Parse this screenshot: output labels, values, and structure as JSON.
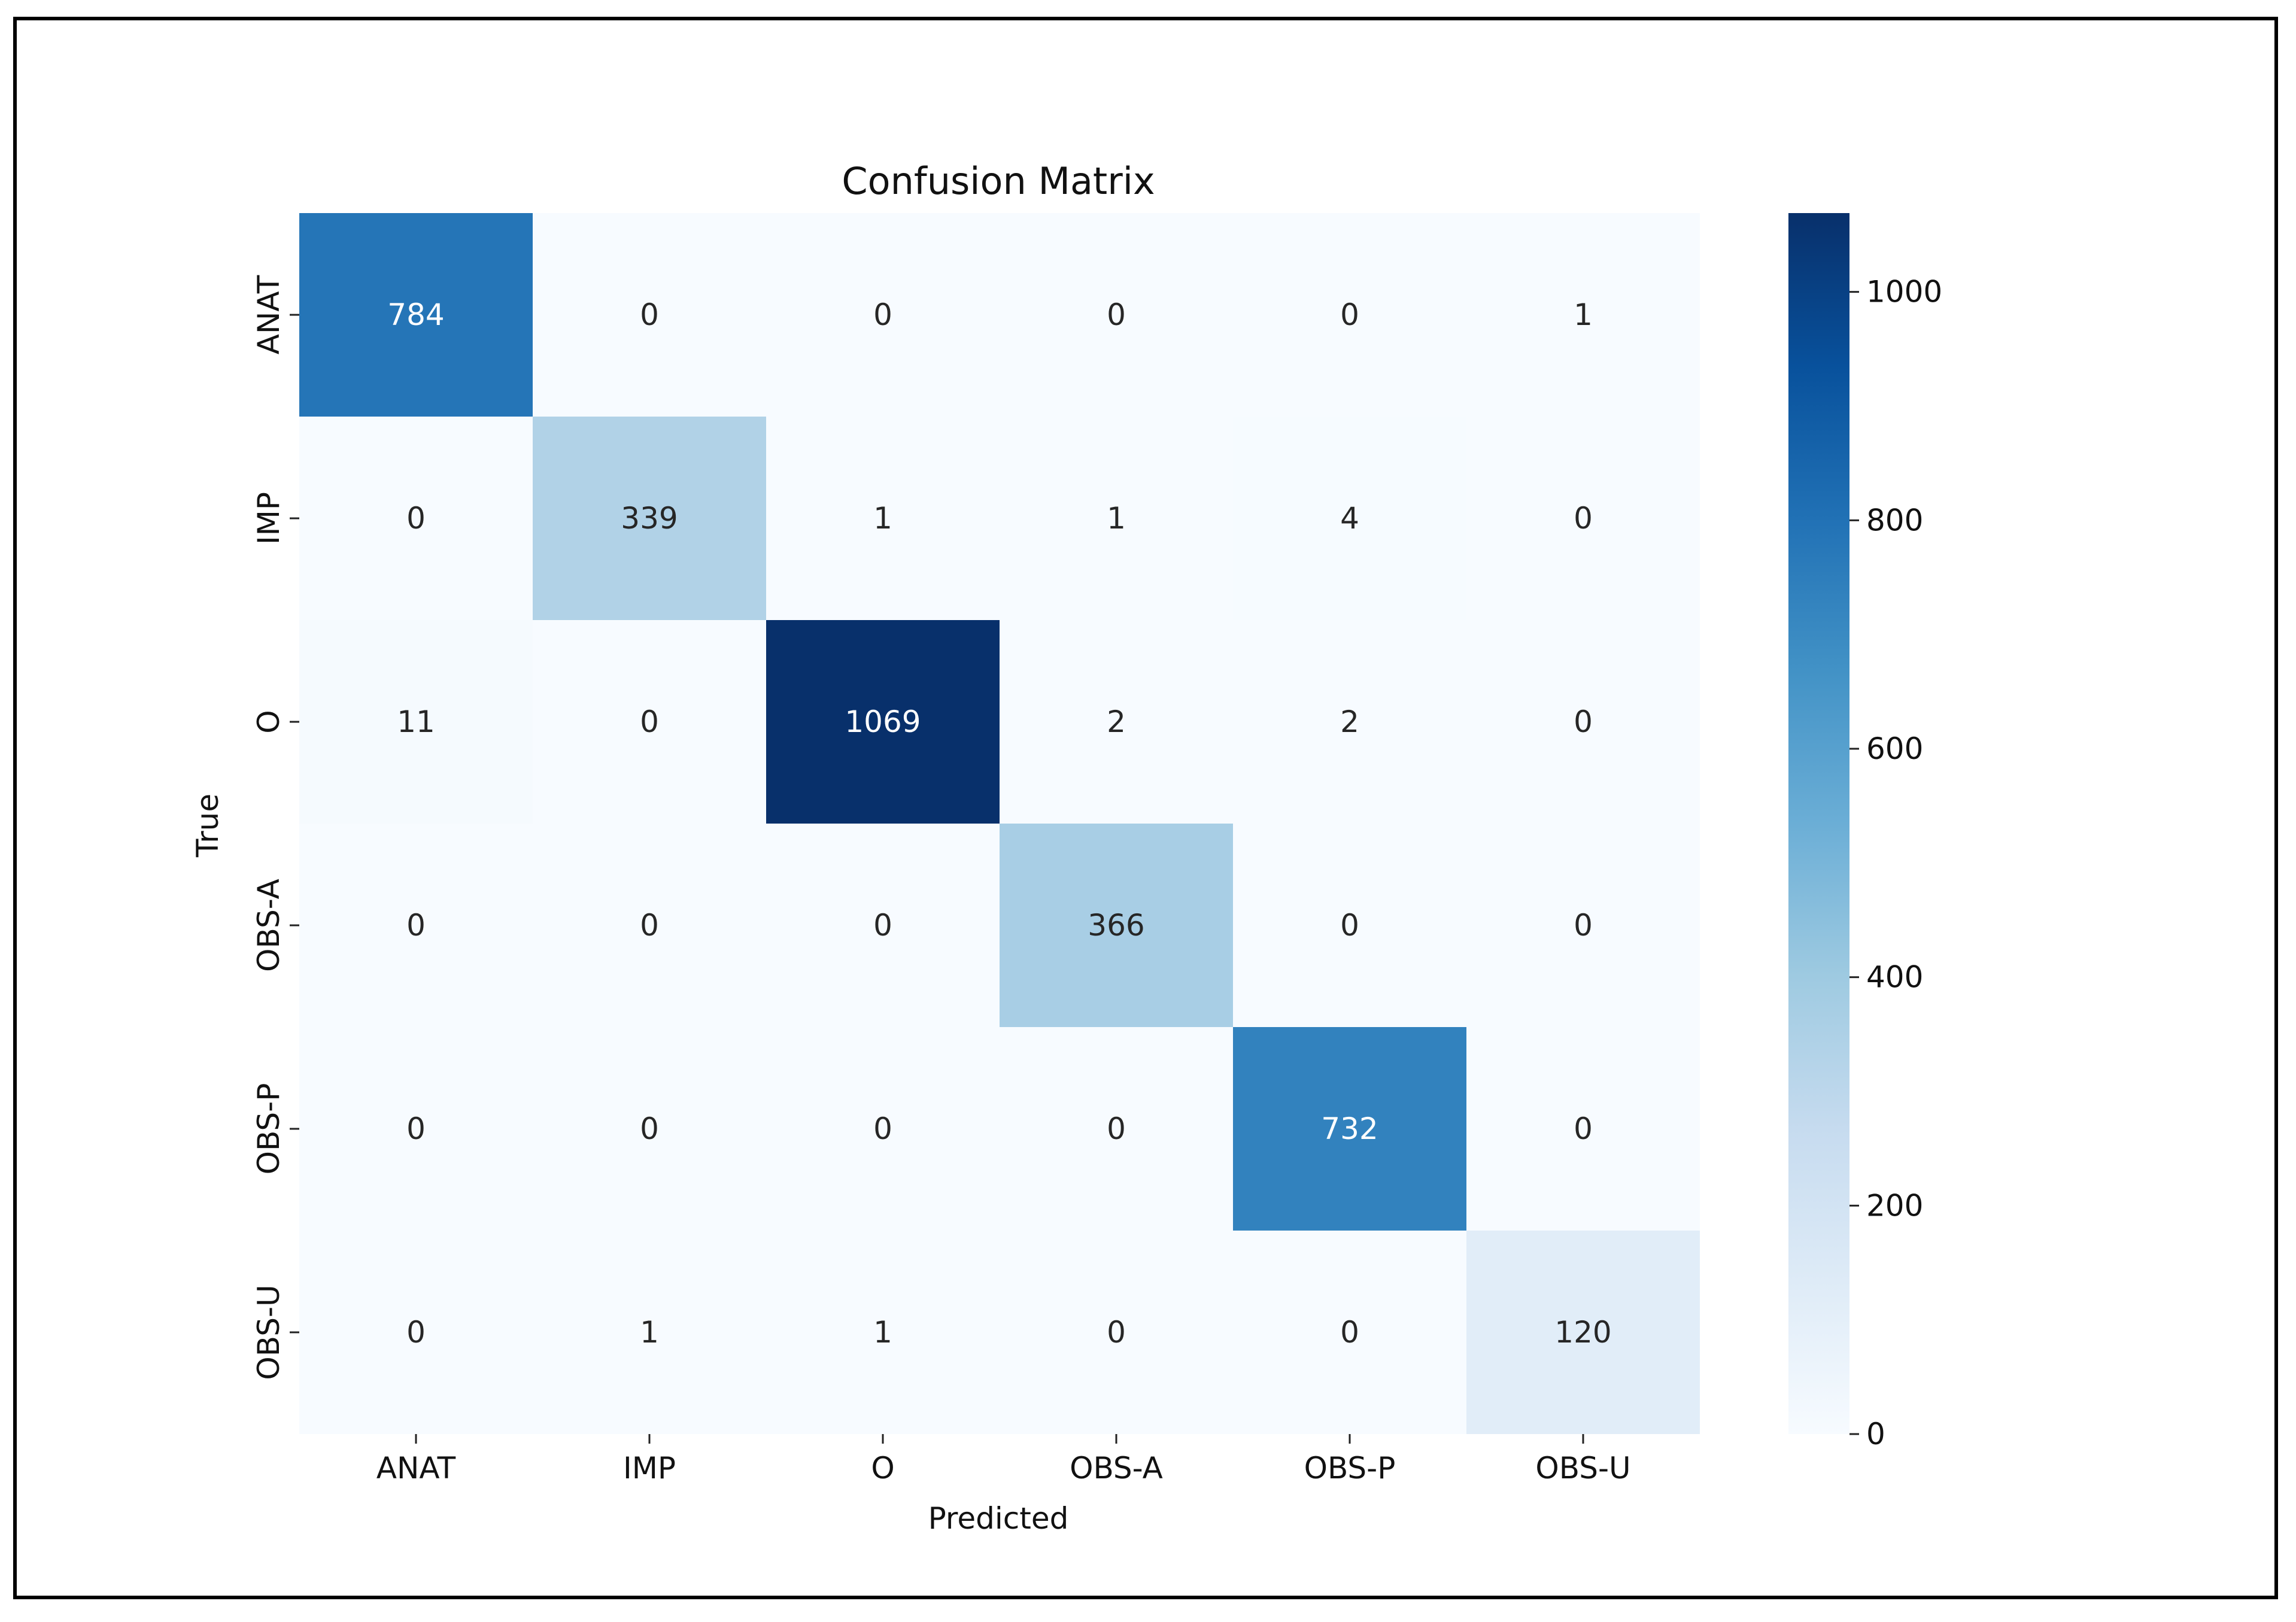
{
  "chart_data": {
    "type": "heatmap",
    "title": "Confusion Matrix",
    "xlabel": "Predicted",
    "ylabel": "True",
    "x_categories": [
      "ANAT",
      "IMP",
      "O",
      "OBS-A",
      "OBS-P",
      "OBS-U"
    ],
    "y_categories": [
      "ANAT",
      "IMP",
      "O",
      "OBS-A",
      "OBS-P",
      "OBS-U"
    ],
    "values": [
      [
        784,
        0,
        0,
        0,
        0,
        1
      ],
      [
        0,
        339,
        1,
        1,
        4,
        0
      ],
      [
        11,
        0,
        1069,
        2,
        2,
        0
      ],
      [
        0,
        0,
        0,
        366,
        0,
        0
      ],
      [
        0,
        0,
        0,
        0,
        732,
        0
      ],
      [
        0,
        1,
        1,
        0,
        0,
        120
      ]
    ],
    "colormap": "Blues",
    "colorbar": {
      "min": 0,
      "max": 1069,
      "ticks": [
        0,
        200,
        400,
        600,
        800,
        1000
      ],
      "tick_labels": [
        "0",
        "200",
        "400",
        "600",
        "800",
        "1000"
      ]
    }
  }
}
